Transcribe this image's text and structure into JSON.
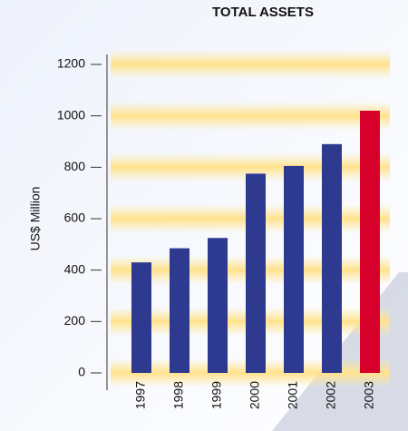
{
  "chart_data": {
    "type": "bar",
    "title": "TOTAL ASSETS",
    "y_label": "US$ Million",
    "categories": [
      "1997",
      "1998",
      "1999",
      "2000",
      "2001",
      "2002",
      "2003"
    ],
    "values": [
      430,
      485,
      525,
      775,
      805,
      890,
      1020
    ],
    "colors": [
      "#2e3a8f",
      "#2e3a8f",
      "#2e3a8f",
      "#2e3a8f",
      "#2e3a8f",
      "#2e3a8f",
      "#d6002b"
    ],
    "ylim": [
      0,
      1200
    ],
    "yticks": [
      0,
      200,
      400,
      600,
      800,
      1000,
      1200
    ],
    "grid": true
  }
}
